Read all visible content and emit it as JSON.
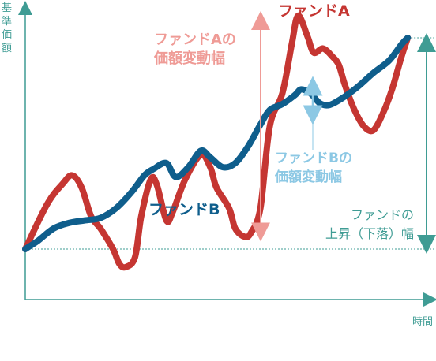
{
  "chart_data": {
    "type": "line",
    "ylabel": "基準価額",
    "xlabel": "時間",
    "series": [
      {
        "name": "ファンドA",
        "color": "#c53632",
        "points": [
          [
            0,
            0
          ],
          [
            7,
            55
          ],
          [
            12,
            80
          ],
          [
            15,
            90
          ],
          [
            18,
            75
          ],
          [
            21,
            40
          ],
          [
            24,
            25
          ],
          [
            28,
            0
          ],
          [
            30,
            -18
          ],
          [
            32,
            -22
          ],
          [
            35,
            -10
          ],
          [
            37,
            40
          ],
          [
            40,
            85
          ],
          [
            42,
            78
          ],
          [
            45,
            35
          ],
          [
            47,
            45
          ],
          [
            51,
            85
          ],
          [
            56,
            115
          ],
          [
            59,
            100
          ],
          [
            61,
            75
          ],
          [
            65,
            50
          ],
          [
            67,
            25
          ],
          [
            70,
            15
          ],
          [
            72,
            20
          ],
          [
            75,
            50
          ],
          [
            78,
            150
          ],
          [
            82,
            190
          ],
          [
            85,
            250
          ],
          [
            87,
            285
          ],
          [
            90,
            260
          ],
          [
            92,
            240
          ],
          [
            95,
            245
          ],
          [
            98,
            235
          ],
          [
            100,
            225
          ],
          [
            102,
            200
          ],
          [
            105,
            170
          ],
          [
            108,
            150
          ],
          [
            111,
            145
          ],
          [
            114,
            165
          ],
          [
            117,
            195
          ],
          [
            120,
            235
          ],
          [
            122,
            258
          ]
        ]
      },
      {
        "name": "ファンドB",
        "color": "#0f5e8c",
        "points": [
          [
            0,
            0
          ],
          [
            4,
            10
          ],
          [
            9,
            25
          ],
          [
            14,
            32
          ],
          [
            19,
            35
          ],
          [
            24,
            38
          ],
          [
            29,
            50
          ],
          [
            34,
            70
          ],
          [
            38,
            90
          ],
          [
            41,
            98
          ],
          [
            45,
            105
          ],
          [
            48,
            88
          ],
          [
            52,
            100
          ],
          [
            56,
            120
          ],
          [
            59,
            112
          ],
          [
            63,
            100
          ],
          [
            67,
            105
          ],
          [
            71,
            125
          ],
          [
            75,
            152
          ],
          [
            78,
            170
          ],
          [
            82,
            177
          ],
          [
            86,
            188
          ],
          [
            88,
            195
          ],
          [
            91,
            190
          ],
          [
            94,
            178
          ],
          [
            97,
            176
          ],
          [
            101,
            184
          ],
          [
            106,
            198
          ],
          [
            111,
            215
          ],
          [
            116,
            230
          ],
          [
            120,
            250
          ],
          [
            122,
            258
          ]
        ]
      }
    ],
    "annotations": [
      {
        "text": "ファンドAの",
        "text2": "価額変動幅",
        "color": "#ef9b96",
        "range": [
          15,
          285
        ]
      },
      {
        "text": "ファンドBの",
        "text2": "価額変動幅",
        "color": "#8cc8e4",
        "range": [
          158,
          205
        ]
      },
      {
        "text": "ファンドの",
        "text2": "上昇（下落）幅",
        "color": "#3f9c94",
        "range": [
          0,
          258
        ]
      }
    ],
    "xlim": [
      0,
      128
    ],
    "ylim": [
      -30,
      300
    ],
    "grid": false,
    "legend": "inline-labels"
  }
}
